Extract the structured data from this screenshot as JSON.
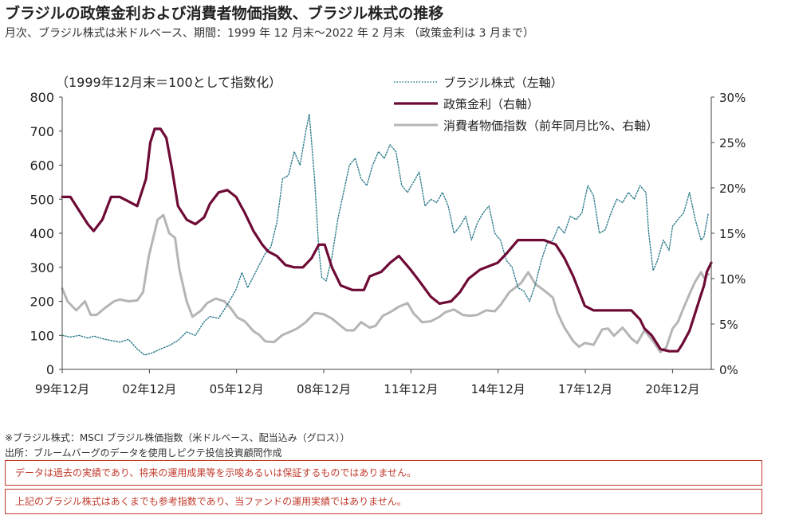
{
  "page": {
    "title": "ブラジルの政策金利および消費者物価指数、ブラジル株式の推移",
    "subtitle": "月次、ブラジル株式は米ドルベース、期間：1999 年 12 月末～2022 年 2 月末 （政策金利は 3 月まで）",
    "note1": "※ブラジル株式：MSCI ブラジル株価指数（米ドルベース、配当込み（グロス））",
    "note2": "出所：ブルームバーグのデータを使用しピクテ投信投資顧問作成",
    "disclaimer1": "データは過去の実績であり、将来の運用成果等を示唆あるいは保証するものではありません。",
    "disclaimer2": "上記のブラジル株式はあくまでも参考指数であり、当ファンドの運用実績ではありません。"
  },
  "chart_data": {
    "type": "line",
    "unit_label": "（1999年12月末＝100として指数化）",
    "x_range": [
      1999.917,
      2022.25
    ],
    "x_ticks": [
      {
        "year": 1999.917,
        "label": "99年12月"
      },
      {
        "year": 2002.917,
        "label": "02年12月"
      },
      {
        "year": 2005.917,
        "label": "05年12月"
      },
      {
        "year": 2008.917,
        "label": "08年12月"
      },
      {
        "year": 2011.917,
        "label": "11年12月"
      },
      {
        "year": 2014.917,
        "label": "14年12月"
      },
      {
        "year": 2017.917,
        "label": "17年12月"
      },
      {
        "year": 2020.917,
        "label": "20年12月"
      }
    ],
    "y_left": {
      "min": 0,
      "max": 800,
      "ticks": [
        0,
        100,
        200,
        300,
        400,
        500,
        600,
        700,
        800
      ],
      "tick_labels": [
        "0",
        "100",
        "200",
        "300",
        "400",
        "500",
        "600",
        "700",
        "800"
      ]
    },
    "y_right": {
      "min": 0,
      "max": 30,
      "ticks": [
        0,
        5,
        10,
        15,
        20,
        25,
        30
      ],
      "tick_labels": [
        "0%",
        "5%",
        "10%",
        "15%",
        "20%",
        "25%",
        "30%"
      ]
    },
    "series": [
      {
        "name": "ブラジル株式（左軸）",
        "axis": "left",
        "color": "#2e7d8c",
        "style": "dotted",
        "points": [
          [
            1999.92,
            100
          ],
          [
            2000.2,
            95
          ],
          [
            2000.5,
            100
          ],
          [
            2000.8,
            92
          ],
          [
            2001.0,
            98
          ],
          [
            2001.3,
            90
          ],
          [
            2001.6,
            85
          ],
          [
            2001.9,
            80
          ],
          [
            2002.2,
            88
          ],
          [
            2002.5,
            60
          ],
          [
            2002.75,
            42
          ],
          [
            2003.0,
            48
          ],
          [
            2003.3,
            60
          ],
          [
            2003.6,
            70
          ],
          [
            2003.9,
            85
          ],
          [
            2004.2,
            110
          ],
          [
            2004.5,
            100
          ],
          [
            2004.8,
            140
          ],
          [
            2005.0,
            155
          ],
          [
            2005.3,
            150
          ],
          [
            2005.6,
            190
          ],
          [
            2005.9,
            235
          ],
          [
            2006.1,
            285
          ],
          [
            2006.3,
            240
          ],
          [
            2006.6,
            290
          ],
          [
            2006.9,
            340
          ],
          [
            2007.1,
            360
          ],
          [
            2007.3,
            430
          ],
          [
            2007.5,
            560
          ],
          [
            2007.7,
            570
          ],
          [
            2007.9,
            640
          ],
          [
            2008.1,
            600
          ],
          [
            2008.3,
            700
          ],
          [
            2008.42,
            750
          ],
          [
            2008.6,
            560
          ],
          [
            2008.75,
            350
          ],
          [
            2008.85,
            270
          ],
          [
            2009.0,
            260
          ],
          [
            2009.2,
            330
          ],
          [
            2009.4,
            440
          ],
          [
            2009.6,
            520
          ],
          [
            2009.8,
            600
          ],
          [
            2010.0,
            620
          ],
          [
            2010.2,
            560
          ],
          [
            2010.4,
            540
          ],
          [
            2010.6,
            600
          ],
          [
            2010.8,
            640
          ],
          [
            2011.0,
            620
          ],
          [
            2011.2,
            660
          ],
          [
            2011.4,
            640
          ],
          [
            2011.6,
            540
          ],
          [
            2011.8,
            520
          ],
          [
            2012.0,
            550
          ],
          [
            2012.2,
            580
          ],
          [
            2012.4,
            480
          ],
          [
            2012.6,
            500
          ],
          [
            2012.8,
            490
          ],
          [
            2013.0,
            520
          ],
          [
            2013.2,
            480
          ],
          [
            2013.4,
            400
          ],
          [
            2013.6,
            420
          ],
          [
            2013.8,
            450
          ],
          [
            2014.0,
            380
          ],
          [
            2014.2,
            430
          ],
          [
            2014.4,
            460
          ],
          [
            2014.6,
            480
          ],
          [
            2014.8,
            400
          ],
          [
            2015.0,
            380
          ],
          [
            2015.2,
            320
          ],
          [
            2015.4,
            300
          ],
          [
            2015.6,
            240
          ],
          [
            2015.8,
            230
          ],
          [
            2016.0,
            200
          ],
          [
            2016.2,
            250
          ],
          [
            2016.4,
            320
          ],
          [
            2016.6,
            370
          ],
          [
            2016.8,
            380
          ],
          [
            2017.0,
            420
          ],
          [
            2017.2,
            400
          ],
          [
            2017.4,
            450
          ],
          [
            2017.6,
            440
          ],
          [
            2017.8,
            460
          ],
          [
            2018.0,
            540
          ],
          [
            2018.2,
            510
          ],
          [
            2018.4,
            400
          ],
          [
            2018.6,
            410
          ],
          [
            2018.8,
            460
          ],
          [
            2019.0,
            500
          ],
          [
            2019.2,
            490
          ],
          [
            2019.4,
            520
          ],
          [
            2019.6,
            500
          ],
          [
            2019.8,
            540
          ],
          [
            2020.0,
            520
          ],
          [
            2020.1,
            400
          ],
          [
            2020.25,
            290
          ],
          [
            2020.4,
            320
          ],
          [
            2020.6,
            380
          ],
          [
            2020.8,
            350
          ],
          [
            2020.92,
            420
          ],
          [
            2021.1,
            440
          ],
          [
            2021.3,
            460
          ],
          [
            2021.5,
            520
          ],
          [
            2021.7,
            440
          ],
          [
            2021.9,
            380
          ],
          [
            2022.0,
            390
          ],
          [
            2022.15,
            460
          ]
        ]
      },
      {
        "name": "政策金利（右軸）",
        "axis": "right",
        "color": "#6e0a36",
        "style": "solid",
        "points": [
          [
            1999.92,
            19
          ],
          [
            2000.2,
            19
          ],
          [
            2000.5,
            17.5
          ],
          [
            2000.8,
            16
          ],
          [
            2001.0,
            15.25
          ],
          [
            2001.3,
            16.5
          ],
          [
            2001.6,
            19
          ],
          [
            2001.9,
            19
          ],
          [
            2002.2,
            18.5
          ],
          [
            2002.5,
            18
          ],
          [
            2002.8,
            21
          ],
          [
            2002.95,
            25
          ],
          [
            2003.1,
            26.5
          ],
          [
            2003.3,
            26.5
          ],
          [
            2003.5,
            25.5
          ],
          [
            2003.7,
            22
          ],
          [
            2003.9,
            18
          ],
          [
            2004.2,
            16.5
          ],
          [
            2004.5,
            16
          ],
          [
            2004.8,
            16.75
          ],
          [
            2005.0,
            18.25
          ],
          [
            2005.3,
            19.5
          ],
          [
            2005.6,
            19.75
          ],
          [
            2005.9,
            19
          ],
          [
            2006.2,
            17.25
          ],
          [
            2006.5,
            15.25
          ],
          [
            2006.8,
            13.75
          ],
          [
            2007.0,
            13
          ],
          [
            2007.3,
            12.5
          ],
          [
            2007.6,
            11.5
          ],
          [
            2007.9,
            11.25
          ],
          [
            2008.2,
            11.25
          ],
          [
            2008.5,
            12.25
          ],
          [
            2008.75,
            13.75
          ],
          [
            2008.95,
            13.75
          ],
          [
            2009.2,
            11.25
          ],
          [
            2009.5,
            9.25
          ],
          [
            2009.9,
            8.75
          ],
          [
            2010.3,
            8.75
          ],
          [
            2010.5,
            10.25
          ],
          [
            2010.9,
            10.75
          ],
          [
            2011.2,
            11.75
          ],
          [
            2011.5,
            12.5
          ],
          [
            2011.9,
            11
          ],
          [
            2012.2,
            9.75
          ],
          [
            2012.6,
            8
          ],
          [
            2012.9,
            7.25
          ],
          [
            2013.3,
            7.5
          ],
          [
            2013.6,
            8.5
          ],
          [
            2013.9,
            10
          ],
          [
            2014.3,
            11
          ],
          [
            2014.9,
            11.75
          ],
          [
            2015.2,
            12.75
          ],
          [
            2015.6,
            14.25
          ],
          [
            2016.0,
            14.25
          ],
          [
            2016.5,
            14.25
          ],
          [
            2016.9,
            13.75
          ],
          [
            2017.2,
            12.25
          ],
          [
            2017.5,
            10.25
          ],
          [
            2017.9,
            7
          ],
          [
            2018.2,
            6.5
          ],
          [
            2018.6,
            6.5
          ],
          [
            2019.0,
            6.5
          ],
          [
            2019.5,
            6.5
          ],
          [
            2019.8,
            5.5
          ],
          [
            2019.95,
            4.5
          ],
          [
            2020.2,
            3.75
          ],
          [
            2020.5,
            2.25
          ],
          [
            2020.8,
            2
          ],
          [
            2021.1,
            2
          ],
          [
            2021.25,
            2.75
          ],
          [
            2021.5,
            4.25
          ],
          [
            2021.7,
            6.25
          ],
          [
            2021.85,
            7.75
          ],
          [
            2022.0,
            9.25
          ],
          [
            2022.1,
            10.75
          ],
          [
            2022.25,
            11.75
          ]
        ]
      },
      {
        "name": "消費者物価指数（前年同月比%、右軸）",
        "axis": "right",
        "color": "#b5b5b5",
        "style": "solid",
        "points": [
          [
            1999.92,
            8.9
          ],
          [
            2000.1,
            7.5
          ],
          [
            2000.4,
            6.5
          ],
          [
            2000.7,
            7.5
          ],
          [
            2000.9,
            6
          ],
          [
            2001.1,
            6
          ],
          [
            2001.4,
            6.8
          ],
          [
            2001.7,
            7.5
          ],
          [
            2001.9,
            7.7
          ],
          [
            2002.2,
            7.5
          ],
          [
            2002.5,
            7.6
          ],
          [
            2002.7,
            8.5
          ],
          [
            2002.9,
            12.5
          ],
          [
            2003.2,
            16.5
          ],
          [
            2003.4,
            17
          ],
          [
            2003.6,
            15
          ],
          [
            2003.8,
            14.5
          ],
          [
            2003.95,
            11
          ],
          [
            2004.2,
            7.5
          ],
          [
            2004.4,
            5.8
          ],
          [
            2004.7,
            6.5
          ],
          [
            2004.9,
            7.3
          ],
          [
            2005.2,
            7.8
          ],
          [
            2005.5,
            7.5
          ],
          [
            2005.7,
            6.8
          ],
          [
            2005.95,
            5.7
          ],
          [
            2006.2,
            5.3
          ],
          [
            2006.5,
            4.2
          ],
          [
            2006.7,
            3.8
          ],
          [
            2006.9,
            3.1
          ],
          [
            2007.2,
            3
          ],
          [
            2007.5,
            3.8
          ],
          [
            2007.8,
            4.2
          ],
          [
            2008.0,
            4.5
          ],
          [
            2008.3,
            5.2
          ],
          [
            2008.6,
            6.2
          ],
          [
            2008.9,
            6.1
          ],
          [
            2009.2,
            5.6
          ],
          [
            2009.5,
            4.8
          ],
          [
            2009.7,
            4.3
          ],
          [
            2009.95,
            4.3
          ],
          [
            2010.2,
            5.2
          ],
          [
            2010.5,
            4.6
          ],
          [
            2010.7,
            4.8
          ],
          [
            2010.95,
            5.9
          ],
          [
            2011.2,
            6.3
          ],
          [
            2011.5,
            6.9
          ],
          [
            2011.8,
            7.3
          ],
          [
            2012.0,
            6.2
          ],
          [
            2012.3,
            5.2
          ],
          [
            2012.6,
            5.3
          ],
          [
            2012.9,
            5.8
          ],
          [
            2013.1,
            6.3
          ],
          [
            2013.4,
            6.6
          ],
          [
            2013.7,
            6
          ],
          [
            2013.95,
            5.9
          ],
          [
            2014.2,
            6
          ],
          [
            2014.5,
            6.5
          ],
          [
            2014.8,
            6.4
          ],
          [
            2015.0,
            7.1
          ],
          [
            2015.3,
            8.5
          ],
          [
            2015.5,
            9
          ],
          [
            2015.7,
            9.5
          ],
          [
            2015.95,
            10.7
          ],
          [
            2016.2,
            9.4
          ],
          [
            2016.5,
            8.7
          ],
          [
            2016.8,
            7.9
          ],
          [
            2016.95,
            6.3
          ],
          [
            2017.2,
            4.6
          ],
          [
            2017.5,
            3.1
          ],
          [
            2017.7,
            2.5
          ],
          [
            2017.9,
            2.9
          ],
          [
            2018.2,
            2.7
          ],
          [
            2018.5,
            4.4
          ],
          [
            2018.7,
            4.5
          ],
          [
            2018.9,
            3.7
          ],
          [
            2019.2,
            4.6
          ],
          [
            2019.5,
            3.4
          ],
          [
            2019.7,
            2.9
          ],
          [
            2019.95,
            4.3
          ],
          [
            2020.2,
            3.3
          ],
          [
            2020.4,
            2.4
          ],
          [
            2020.5,
            1.9
          ],
          [
            2020.7,
            2.4
          ],
          [
            2020.92,
            4.5
          ],
          [
            2021.1,
            5.2
          ],
          [
            2021.3,
            6.8
          ],
          [
            2021.5,
            8.3
          ],
          [
            2021.7,
            9.7
          ],
          [
            2021.9,
            10.7
          ],
          [
            2022.0,
            10.1
          ],
          [
            2022.15,
            10.5
          ]
        ]
      }
    ]
  }
}
